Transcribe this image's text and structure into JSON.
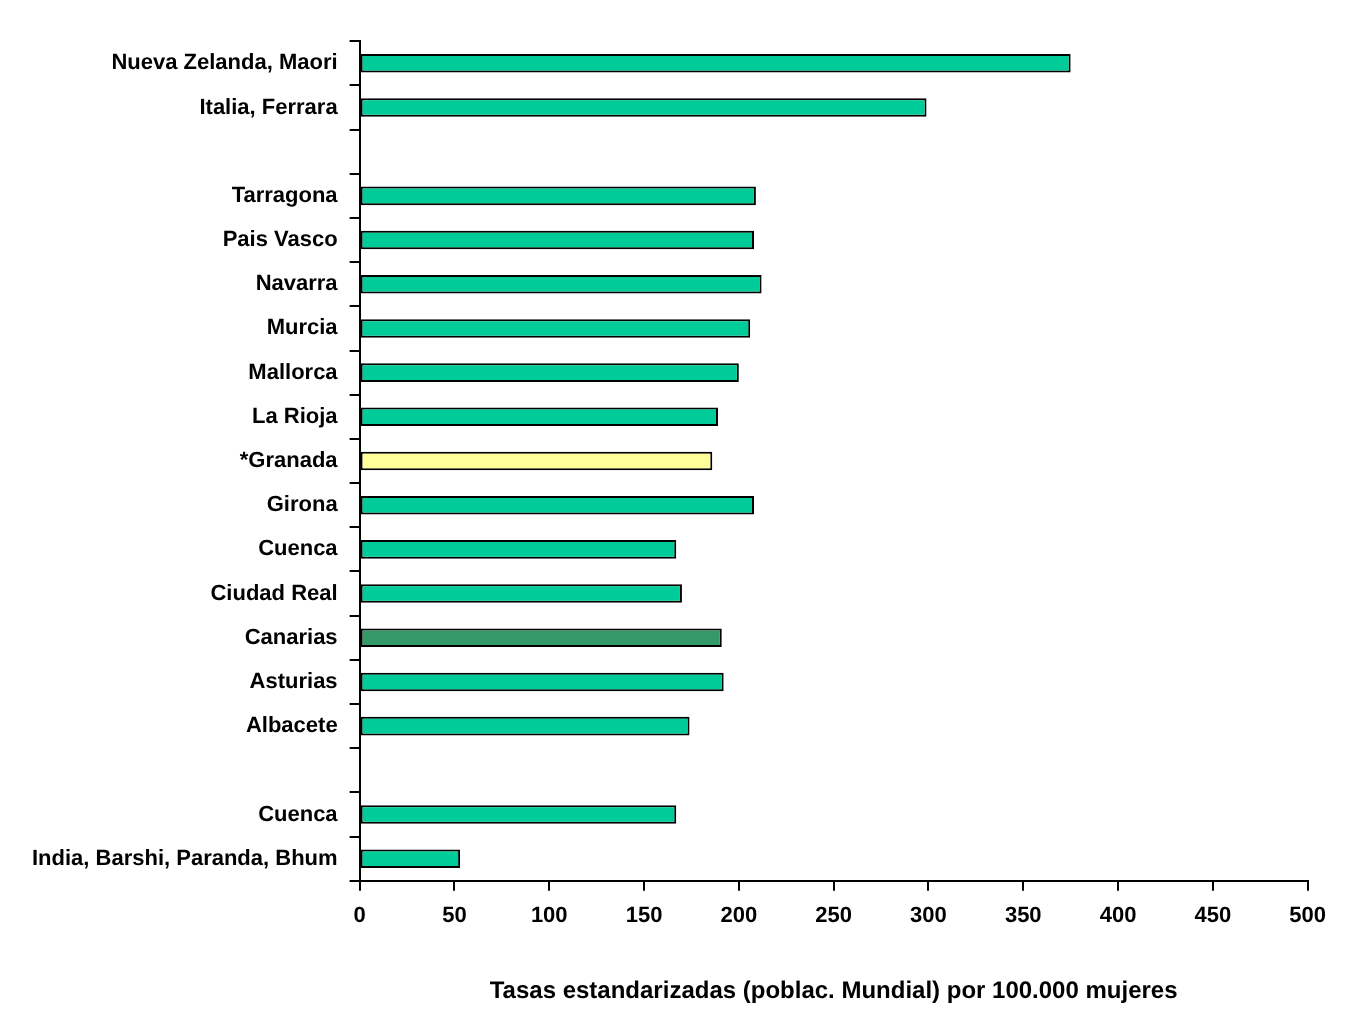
{
  "chart_data": {
    "type": "bar",
    "orientation": "horizontal",
    "xlabel": "Tasas estandarizadas (poblac. Mundial) por 100.000 mujeres",
    "categories": [
      "Nueva Zelanda, Maori",
      "Italia, Ferrara",
      null,
      "Tarragona",
      "Pais Vasco",
      "Navarra",
      "Murcia",
      "Mallorca",
      "La Rioja",
      "*Granada",
      "Girona",
      "Cuenca",
      "Ciudad Real",
      "Canarias",
      "Asturias",
      "Albacete",
      null,
      "Cuenca",
      "India, Barshi, Paranda, Bhum"
    ],
    "values": [
      375,
      299,
      null,
      209,
      208,
      212,
      206,
      200,
      189,
      186,
      208,
      167,
      170,
      191,
      192,
      174,
      null,
      167,
      53
    ],
    "colors": [
      "#00cc99",
      "#00cc99",
      "#00cc99",
      "#00cc99",
      "#00cc99",
      "#00cc99",
      "#00cc99",
      "#00cc99",
      "#00cc99",
      "#ffff99",
      "#00cc99",
      "#00cc99",
      "#00cc99",
      "#339966",
      "#00cc99",
      "#00cc99",
      "#00cc99",
      "#00cc99",
      "#00cc99"
    ],
    "xlim": [
      0,
      500
    ],
    "xticks": [
      0,
      50,
      100,
      150,
      200,
      250,
      300,
      350,
      400,
      450,
      500
    ],
    "grid": false,
    "legend": false
  }
}
